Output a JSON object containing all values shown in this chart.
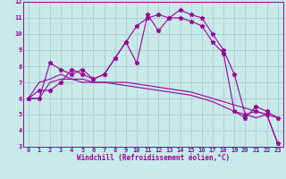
{
  "xlabel": "Windchill (Refroidissement éolien,°C)",
  "bg_color": "#c8eaea",
  "line_color": "#990099",
  "grid_color": "#aacccc",
  "hours": [
    0,
    1,
    2,
    3,
    4,
    5,
    6,
    7,
    8,
    9,
    10,
    11,
    12,
    13,
    14,
    15,
    16,
    17,
    18,
    19,
    20,
    21,
    22,
    23
  ],
  "series1": [
    6.0,
    6.5,
    6.5,
    7.0,
    7.8,
    7.5,
    7.2,
    7.5,
    8.5,
    9.5,
    8.2,
    11.2,
    10.2,
    11.0,
    11.5,
    11.2,
    11.0,
    10.0,
    9.0,
    7.5,
    5.0,
    5.2,
    5.0,
    3.2
  ],
  "series2": [
    6.0,
    6.0,
    8.2,
    7.8,
    7.5,
    7.8,
    7.2,
    7.5,
    8.5,
    9.5,
    10.5,
    11.0,
    11.2,
    11.0,
    11.0,
    10.8,
    10.5,
    9.5,
    8.8,
    5.2,
    4.8,
    5.5,
    5.2,
    4.8
  ],
  "series3": [
    6.0,
    7.0,
    7.2,
    7.5,
    7.2,
    7.2,
    7.0,
    7.0,
    7.0,
    7.0,
    6.9,
    6.8,
    6.7,
    6.6,
    6.5,
    6.4,
    6.2,
    6.0,
    5.8,
    5.6,
    5.4,
    5.2,
    5.0,
    4.8
  ],
  "series4": [
    6.0,
    6.0,
    7.0,
    7.2,
    7.2,
    7.0,
    7.0,
    7.0,
    6.9,
    6.8,
    6.7,
    6.6,
    6.5,
    6.4,
    6.3,
    6.2,
    6.0,
    5.8,
    5.5,
    5.2,
    5.0,
    4.8,
    5.0,
    3.2
  ],
  "ylim": [
    3,
    12
  ],
  "xlim_min": -0.5,
  "xlim_max": 23.5,
  "yticks": [
    3,
    4,
    5,
    6,
    7,
    8,
    9,
    10,
    11,
    12
  ],
  "xticks": [
    0,
    1,
    2,
    3,
    4,
    5,
    6,
    7,
    8,
    9,
    10,
    11,
    12,
    13,
    14,
    15,
    16,
    17,
    18,
    19,
    20,
    21,
    22,
    23
  ]
}
